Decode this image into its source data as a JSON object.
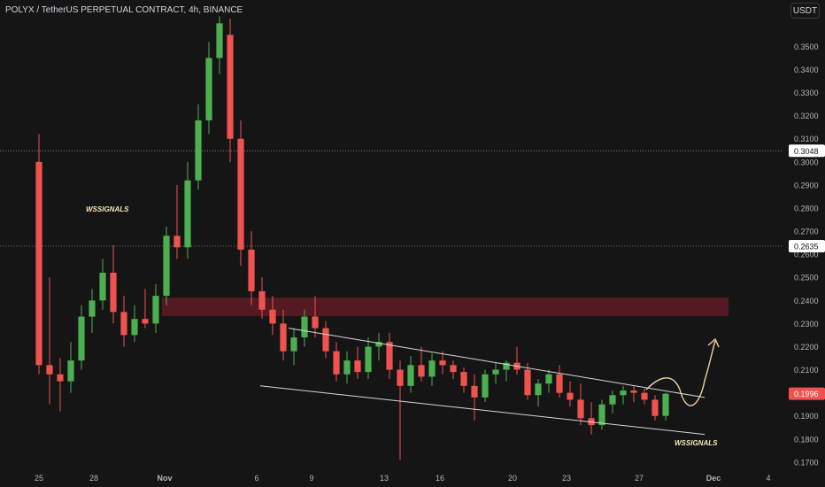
{
  "header": {
    "title": "POLYX / TetherUS PERPETUAL CONTRACT, 4h, BINANCE",
    "currency": "USDT"
  },
  "watermarks": [
    "WSSIGNALS",
    "WSSIGNALS"
  ],
  "colors": {
    "background": "#151515",
    "up": "#26a69a",
    "upBright": "#4caf50",
    "down": "#ef5350",
    "zone": "#5c1a22",
    "trendline": "#d8d8d8",
    "projection": "#f2cfa0",
    "grid": "#8a8a8a"
  },
  "chart_data": {
    "type": "candlestick",
    "title": "POLYX / TetherUS PERPETUAL CONTRACT, 4h, BINANCE",
    "y_axis": {
      "ticks": [
        "0.3500",
        "0.3400",
        "0.3300",
        "0.3200",
        "0.3100",
        "0.3000",
        "0.2900",
        "0.2800",
        "0.2700",
        "0.2600",
        "0.2500",
        "0.2400",
        "0.2300",
        "0.2200",
        "0.2100",
        "0.2000",
        "0.1900",
        "0.1800",
        "0.1700"
      ],
      "range": [
        0.1665,
        0.3632
      ]
    },
    "x_axis": {
      "ticks": [
        "25",
        "28",
        "Nov",
        "6",
        "9",
        "13",
        "16",
        "20",
        "23",
        "27",
        "Dec",
        "4"
      ]
    },
    "price_labels": [
      {
        "value": "0.3048",
        "price": 0.3048,
        "style": "dotted-line"
      },
      {
        "value": "0.2635",
        "price": 0.2635,
        "style": "dotted-line"
      },
      {
        "value": "0.1996",
        "price": 0.1996,
        "style": "current"
      }
    ],
    "resistance_zone": {
      "from": 0.2332,
      "to": 0.2412
    },
    "descending_channel": {
      "upper": {
        "from": {
          "x": "6",
          "price": 0.228
        },
        "to": {
          "x": "Dec",
          "price": 0.198
        }
      },
      "lower": {
        "from": {
          "x": "6",
          "price": 0.203
        },
        "to": {
          "x": "Dec",
          "price": 0.182
        }
      }
    },
    "candles": [
      [
        0.3,
        0.312,
        0.208,
        0.212
      ],
      [
        0.212,
        0.25,
        0.195,
        0.208
      ],
      [
        0.208,
        0.215,
        0.192,
        0.205
      ],
      [
        0.205,
        0.222,
        0.2,
        0.214
      ],
      [
        0.214,
        0.238,
        0.21,
        0.233
      ],
      [
        0.233,
        0.245,
        0.226,
        0.24
      ],
      [
        0.24,
        0.258,
        0.236,
        0.252
      ],
      [
        0.252,
        0.264,
        0.23,
        0.235
      ],
      [
        0.235,
        0.242,
        0.22,
        0.225
      ],
      [
        0.225,
        0.238,
        0.222,
        0.232
      ],
      [
        0.232,
        0.245,
        0.228,
        0.23
      ],
      [
        0.23,
        0.247,
        0.226,
        0.242
      ],
      [
        0.242,
        0.272,
        0.238,
        0.268
      ],
      [
        0.268,
        0.29,
        0.258,
        0.263
      ],
      [
        0.263,
        0.3,
        0.258,
        0.292
      ],
      [
        0.292,
        0.325,
        0.288,
        0.318
      ],
      [
        0.318,
        0.352,
        0.312,
        0.345
      ],
      [
        0.345,
        0.363,
        0.338,
        0.36
      ],
      [
        0.355,
        0.362,
        0.3,
        0.31
      ],
      [
        0.31,
        0.318,
        0.255,
        0.262
      ],
      [
        0.262,
        0.27,
        0.238,
        0.244
      ],
      [
        0.244,
        0.25,
        0.232,
        0.236
      ],
      [
        0.236,
        0.242,
        0.225,
        0.23
      ],
      [
        0.23,
        0.236,
        0.214,
        0.218
      ],
      [
        0.218,
        0.228,
        0.212,
        0.224
      ],
      [
        0.224,
        0.236,
        0.22,
        0.233
      ],
      [
        0.233,
        0.242,
        0.224,
        0.228
      ],
      [
        0.228,
        0.231,
        0.215,
        0.218
      ],
      [
        0.218,
        0.222,
        0.205,
        0.208
      ],
      [
        0.208,
        0.218,
        0.204,
        0.214
      ],
      [
        0.214,
        0.22,
        0.206,
        0.209
      ],
      [
        0.209,
        0.224,
        0.206,
        0.22
      ],
      [
        0.22,
        0.226,
        0.214,
        0.222
      ],
      [
        0.222,
        0.226,
        0.206,
        0.21
      ],
      [
        0.21,
        0.214,
        0.171,
        0.203
      ],
      [
        0.203,
        0.216,
        0.2,
        0.212
      ],
      [
        0.212,
        0.22,
        0.205,
        0.207
      ],
      [
        0.207,
        0.217,
        0.203,
        0.214
      ],
      [
        0.214,
        0.218,
        0.208,
        0.212
      ],
      [
        0.212,
        0.214,
        0.206,
        0.209
      ],
      [
        0.209,
        0.211,
        0.2,
        0.203
      ],
      [
        0.203,
        0.208,
        0.188,
        0.198
      ],
      [
        0.198,
        0.21,
        0.196,
        0.208
      ],
      [
        0.208,
        0.213,
        0.204,
        0.21
      ],
      [
        0.21,
        0.214,
        0.205,
        0.213
      ],
      [
        0.213,
        0.22,
        0.208,
        0.21
      ],
      [
        0.21,
        0.213,
        0.197,
        0.199
      ],
      [
        0.199,
        0.206,
        0.194,
        0.204
      ],
      [
        0.204,
        0.21,
        0.2,
        0.208
      ],
      [
        0.208,
        0.212,
        0.198,
        0.2
      ],
      [
        0.2,
        0.205,
        0.194,
        0.197
      ],
      [
        0.197,
        0.204,
        0.186,
        0.189
      ],
      [
        0.189,
        0.196,
        0.182,
        0.186
      ],
      [
        0.186,
        0.197,
        0.184,
        0.195
      ],
      [
        0.195,
        0.201,
        0.191,
        0.199
      ],
      [
        0.199,
        0.203,
        0.195,
        0.201
      ],
      [
        0.201,
        0.203,
        0.196,
        0.2
      ],
      [
        0.2,
        0.202,
        0.195,
        0.197
      ],
      [
        0.197,
        0.199,
        0.188,
        0.19
      ],
      [
        0.19,
        0.2,
        0.188,
        0.1996
      ]
    ]
  }
}
